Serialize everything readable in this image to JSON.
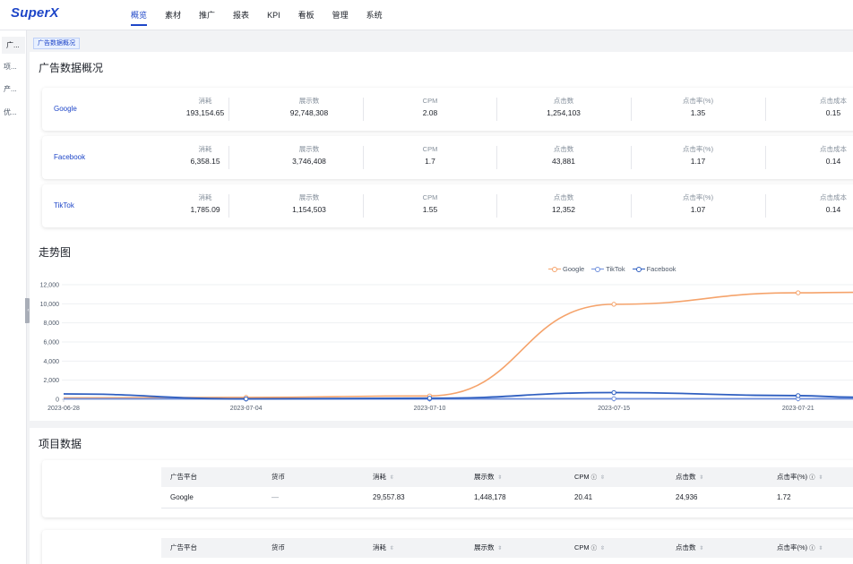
{
  "app": {
    "logo": "SuperX"
  },
  "nav": {
    "items": [
      {
        "label": "概览",
        "active": true
      },
      {
        "label": "素材"
      },
      {
        "label": "推广"
      },
      {
        "label": "报表"
      },
      {
        "label": "KPI"
      },
      {
        "label": "看板"
      },
      {
        "label": "管理"
      },
      {
        "label": "系统"
      }
    ]
  },
  "sidebar": {
    "items": [
      {
        "label": "广..."
      },
      {
        "label": "项..."
      },
      {
        "label": "产..."
      },
      {
        "label": "优..."
      }
    ]
  },
  "breadcrumb": {
    "tag": "广告数据概况"
  },
  "overview": {
    "title": "广告数据概况",
    "labels": {
      "spend": "消耗",
      "impressions": "展示数",
      "cpm": "CPM",
      "clicks": "点击数",
      "ctr": "点击率(%)",
      "cpc": "点击成本"
    },
    "platforms": [
      {
        "name": "Google",
        "spend": "193,154.65",
        "impressions": "92,748,308",
        "cpm": "2.08",
        "clicks": "1,254,103",
        "ctr": "1.35",
        "cpc": "0.15"
      },
      {
        "name": "Facebook",
        "spend": "6,358.15",
        "impressions": "3,746,408",
        "cpm": "1.7",
        "clicks": "43,881",
        "ctr": "1.17",
        "cpc": "0.14"
      },
      {
        "name": "TikTok",
        "spend": "1,785.09",
        "impressions": "1,154,503",
        "cpm": "1.55",
        "clicks": "12,352",
        "ctr": "1.07",
        "cpc": "0.14"
      }
    ]
  },
  "trend": {
    "title": "走势图"
  },
  "chart_data": {
    "type": "line",
    "x_tick_labels": [
      "2023-06-28",
      "2023-07-04",
      "2023-07-10",
      "2023-07-15",
      "2023-07-21"
    ],
    "y_tick_labels": [
      "12,000",
      "10,000",
      "8,000",
      "6,000",
      "4,000",
      "2,000",
      "0"
    ],
    "ylim": [
      0,
      12000
    ],
    "legend_position": "top-center",
    "grid": true,
    "series": [
      {
        "name": "Google",
        "color": "#f5a36b",
        "values": [
          150,
          200,
          350,
          9950,
          11150,
          11200
        ]
      },
      {
        "name": "TikTok",
        "color": "#6f8fdc",
        "values": [
          50,
          40,
          40,
          60,
          60,
          60
        ]
      },
      {
        "name": "Facebook",
        "color": "#2f5fc0",
        "values": [
          560,
          40,
          110,
          700,
          380,
          220
        ]
      }
    ]
  },
  "projects": {
    "title": "项目数据",
    "headers": {
      "platform": "广告平台",
      "currency": "货币",
      "spend": "消耗",
      "impressions": "展示数",
      "cpm": "CPM",
      "clicks": "点击数",
      "ctr": "点击率(%)"
    },
    "rows": [
      {
        "platform": "Google",
        "currency": "—",
        "spend": "29,557.83",
        "impressions": "1,448,178",
        "cpm": "20.41",
        "clicks": "24,936",
        "ctr": "1.72"
      }
    ]
  }
}
